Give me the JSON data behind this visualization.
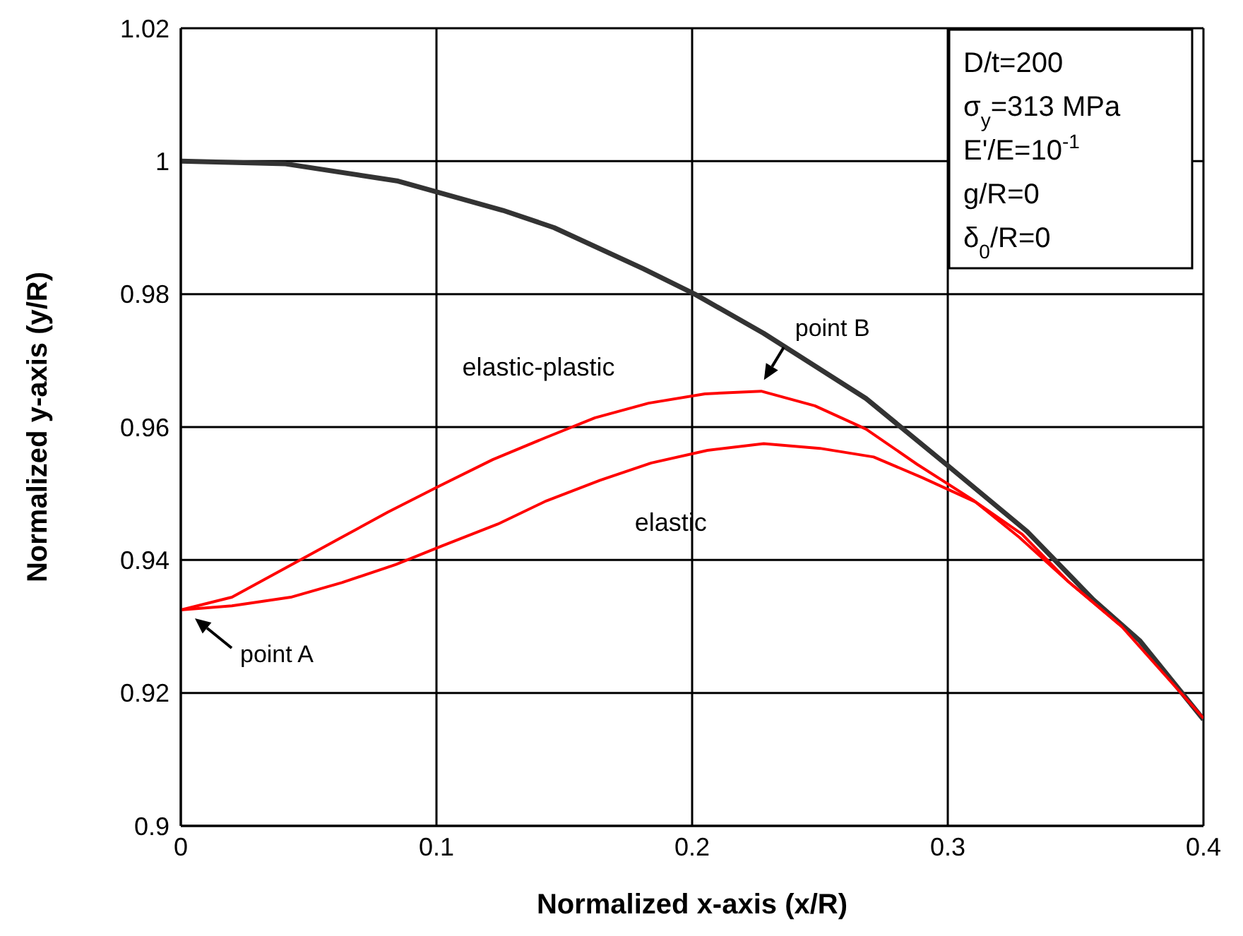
{
  "chart_data": {
    "type": "line",
    "xlabel": "Normalized x-axis (x/R)",
    "ylabel": "Normalized y-axis (y/R)",
    "xlim": [
      0,
      0.4
    ],
    "xticks": [
      0,
      0.1,
      0.2,
      0.3,
      0.4
    ],
    "ylim": [
      0.9,
      1.02
    ],
    "yticks": [
      0.9,
      0.92,
      0.94,
      0.96,
      0.98,
      1,
      1.02
    ],
    "grid": true,
    "legend": false,
    "marker": "none",
    "line_style": "solid",
    "series": [
      {
        "color": "#333333",
        "x": [
          0,
          0.041,
          0.085,
          0.126,
          0.146,
          0.181,
          0.201,
          0.228,
          0.268,
          0.3,
          0.331,
          0.357,
          0.375,
          0.4
        ],
        "values": [
          1.0,
          0.9996,
          0.997,
          0.9926,
          0.99,
          0.9838,
          0.98,
          0.9741,
          0.9643,
          0.9542,
          0.9443,
          0.934,
          0.9279,
          0.916
        ]
      },
      {
        "name": "elastic-plastic",
        "color": "#ff0000",
        "x": [
          0,
          0.02,
          0.039,
          0.06,
          0.081,
          0.101,
          0.122,
          0.142,
          0.162,
          0.183,
          0.205,
          0.227,
          0.248,
          0.268,
          0.288,
          0.31,
          0.328,
          0.347,
          0.368,
          0.4
        ],
        "values": [
          0.9325,
          0.9344,
          0.9384,
          0.9428,
          0.9472,
          0.9511,
          0.9551,
          0.9583,
          0.9614,
          0.9636,
          0.965,
          0.9654,
          0.9632,
          0.9597,
          0.9544,
          0.949,
          0.9434,
          0.9368,
          0.93,
          0.9162
        ]
      },
      {
        "name": "elastic",
        "color": "#ff0000",
        "x": [
          0,
          0.02,
          0.043,
          0.063,
          0.084,
          0.102,
          0.124,
          0.143,
          0.164,
          0.184,
          0.206,
          0.228,
          0.25,
          0.271,
          0.29,
          0.311,
          0.329,
          0.347,
          0.368
        ],
        "values": [
          0.9325,
          0.9331,
          0.9344,
          0.9366,
          0.9393,
          0.9421,
          0.9454,
          0.9489,
          0.952,
          0.9546,
          0.9565,
          0.9575,
          0.9568,
          0.9555,
          0.9524,
          0.9487,
          0.9439,
          0.9368,
          0.93
        ]
      }
    ],
    "annotations": [
      "D/t=200",
      "σ$_{y}$=313 MPa",
      "E'/E=10$^{-1}$",
      "g/R=0",
      "δ$_{0}$/R=0",
      {
        "text": "point A",
        "x": 0,
        "y": 0.9325
      },
      {
        "text": "point B",
        "x": 0.227,
        "y": 0.9654
      }
    ]
  }
}
